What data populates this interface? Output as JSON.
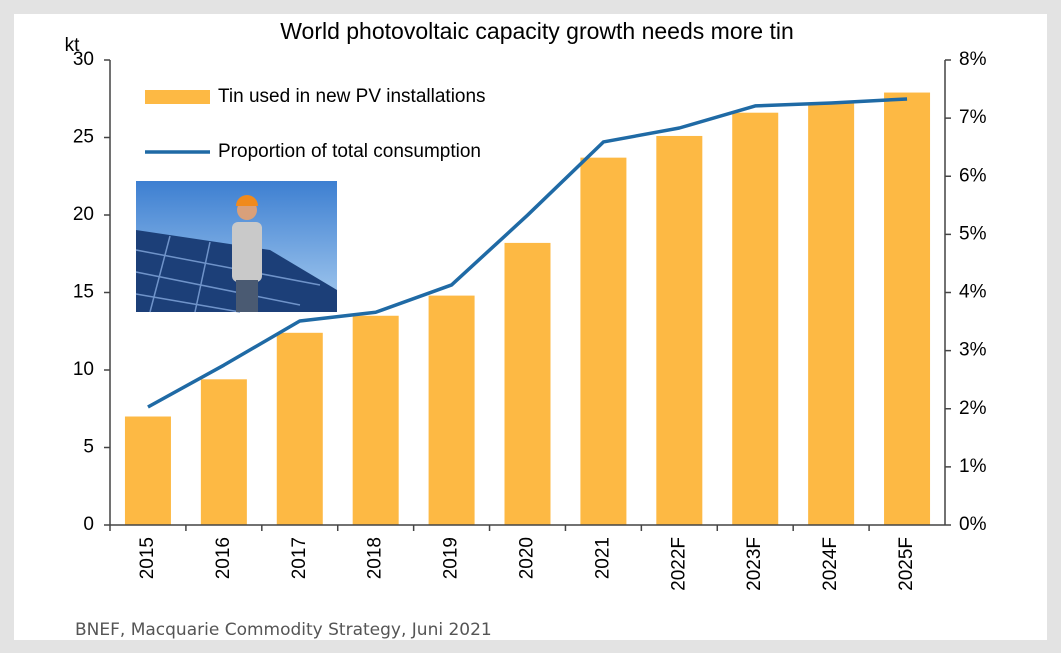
{
  "chart_data": {
    "type": "bar-line",
    "title": "World photovoltaic capacity growth needs more tin",
    "y_label": "kt",
    "source": "BNEF, Macquarie Commodity Strategy, Juni 2021",
    "categories": [
      "2015",
      "2016",
      "2017",
      "2018",
      "2019",
      "2020",
      "2021",
      "2022F",
      "2023F",
      "2024F",
      "2025F"
    ],
    "series": [
      {
        "name": "Tin used in new PV installations",
        "type": "bar",
        "color": "#fdb944",
        "values": [
          7.0,
          9.4,
          12.4,
          13.5,
          14.8,
          18.2,
          23.7,
          25.1,
          26.6,
          27.2,
          27.9
        ]
      },
      {
        "name": "Proportion of total consumption",
        "type": "line",
        "axis": "y2",
        "color": "#1f6aa5",
        "values": [
          2.03,
          2.75,
          3.51,
          3.66,
          4.13,
          5.33,
          6.59,
          6.83,
          7.21,
          7.26,
          7.33
        ]
      }
    ],
    "ylim": [
      0,
      30
    ],
    "yticks": [
      0,
      5,
      10,
      15,
      20,
      25,
      30
    ],
    "y2lim": [
      0,
      8
    ],
    "y2ticks": [
      {
        "value": 0,
        "label": "0%"
      },
      {
        "value": 1,
        "label": "1%"
      },
      {
        "value": 2,
        "label": "2%"
      },
      {
        "value": 3,
        "label": "3%"
      },
      {
        "value": 4,
        "label": "4%"
      },
      {
        "value": 5,
        "label": "5%"
      },
      {
        "value": 6,
        "label": "6%"
      },
      {
        "value": 7,
        "label": "7%"
      },
      {
        "value": 8,
        "label": "8%"
      }
    ],
    "grid": false
  }
}
